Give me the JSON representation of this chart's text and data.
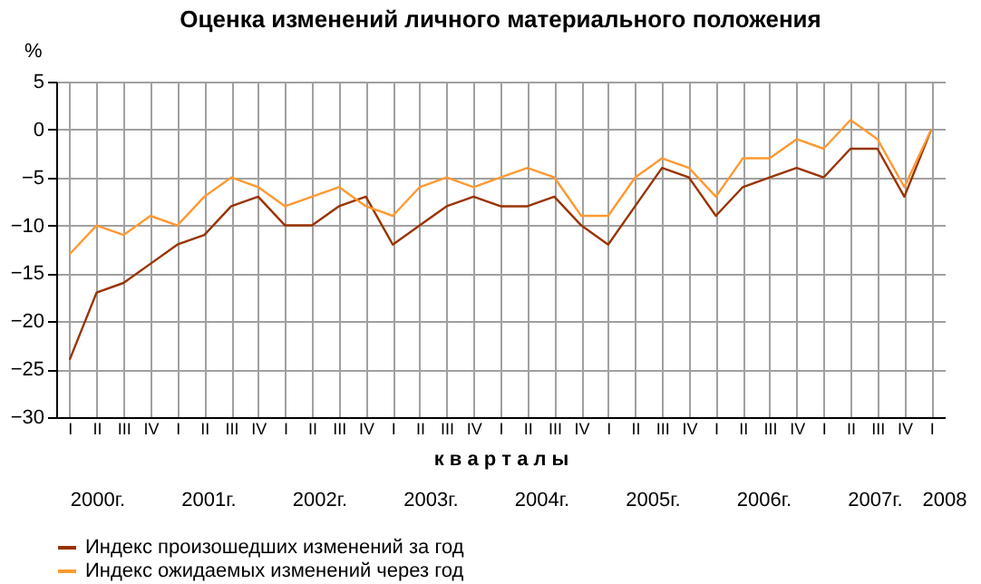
{
  "chart_data": {
    "type": "line",
    "title": "Оценка изменений личного материального положения",
    "ylabel": "%",
    "xlabel": "к в а р т а л ы",
    "categories": [
      "I",
      "II",
      "III",
      "IV",
      "I",
      "II",
      "III",
      "IV",
      "I",
      "II",
      "III",
      "IV",
      "I",
      "II",
      "III",
      "IV",
      "I",
      "II",
      "III",
      "IV",
      "I",
      "II",
      "III",
      "IV",
      "I",
      "II",
      "III",
      "IV",
      "I",
      "II",
      "III",
      "IV",
      "I"
    ],
    "series": [
      {
        "name": "Индекс произошедших изменений за год",
        "color": "#993300",
        "values": [
          -24,
          -17,
          -16,
          -14,
          -12,
          -11,
          -8,
          -7,
          -10,
          -10,
          -8,
          -7,
          -12,
          -10,
          -8,
          -7,
          -8,
          -8,
          -7,
          -10,
          -12,
          -8,
          -4,
          -5,
          -9,
          -6,
          -5,
          -4,
          -5,
          -2,
          -2,
          -7,
          0
        ]
      },
      {
        "name": "Индекс ожидаемых изменений через год",
        "color": "#ff9933",
        "values": [
          -13,
          -10,
          -11,
          -9,
          -10,
          -7,
          -5,
          -6,
          -8,
          -7,
          -6,
          -8,
          -9,
          -6,
          -5,
          -6,
          -5,
          -4,
          -5,
          -9,
          -9,
          -5,
          -3,
          -4,
          -7,
          -3,
          -3,
          -1,
          -2,
          1,
          -1,
          -6,
          0
        ]
      }
    ],
    "annotations": [
      "2000г.",
      "2001г.",
      "2002г.",
      "2003г.",
      "2004г.",
      "2005г.",
      "2006г.",
      "2007г.",
      "2008"
    ],
    "ylim": [
      -30,
      5
    ],
    "yticks": [
      -30,
      -25,
      -20,
      -15,
      -10,
      -5,
      0,
      5
    ],
    "grid": true,
    "legend": "bottom",
    "marker": "none",
    "line_style": "solid"
  }
}
